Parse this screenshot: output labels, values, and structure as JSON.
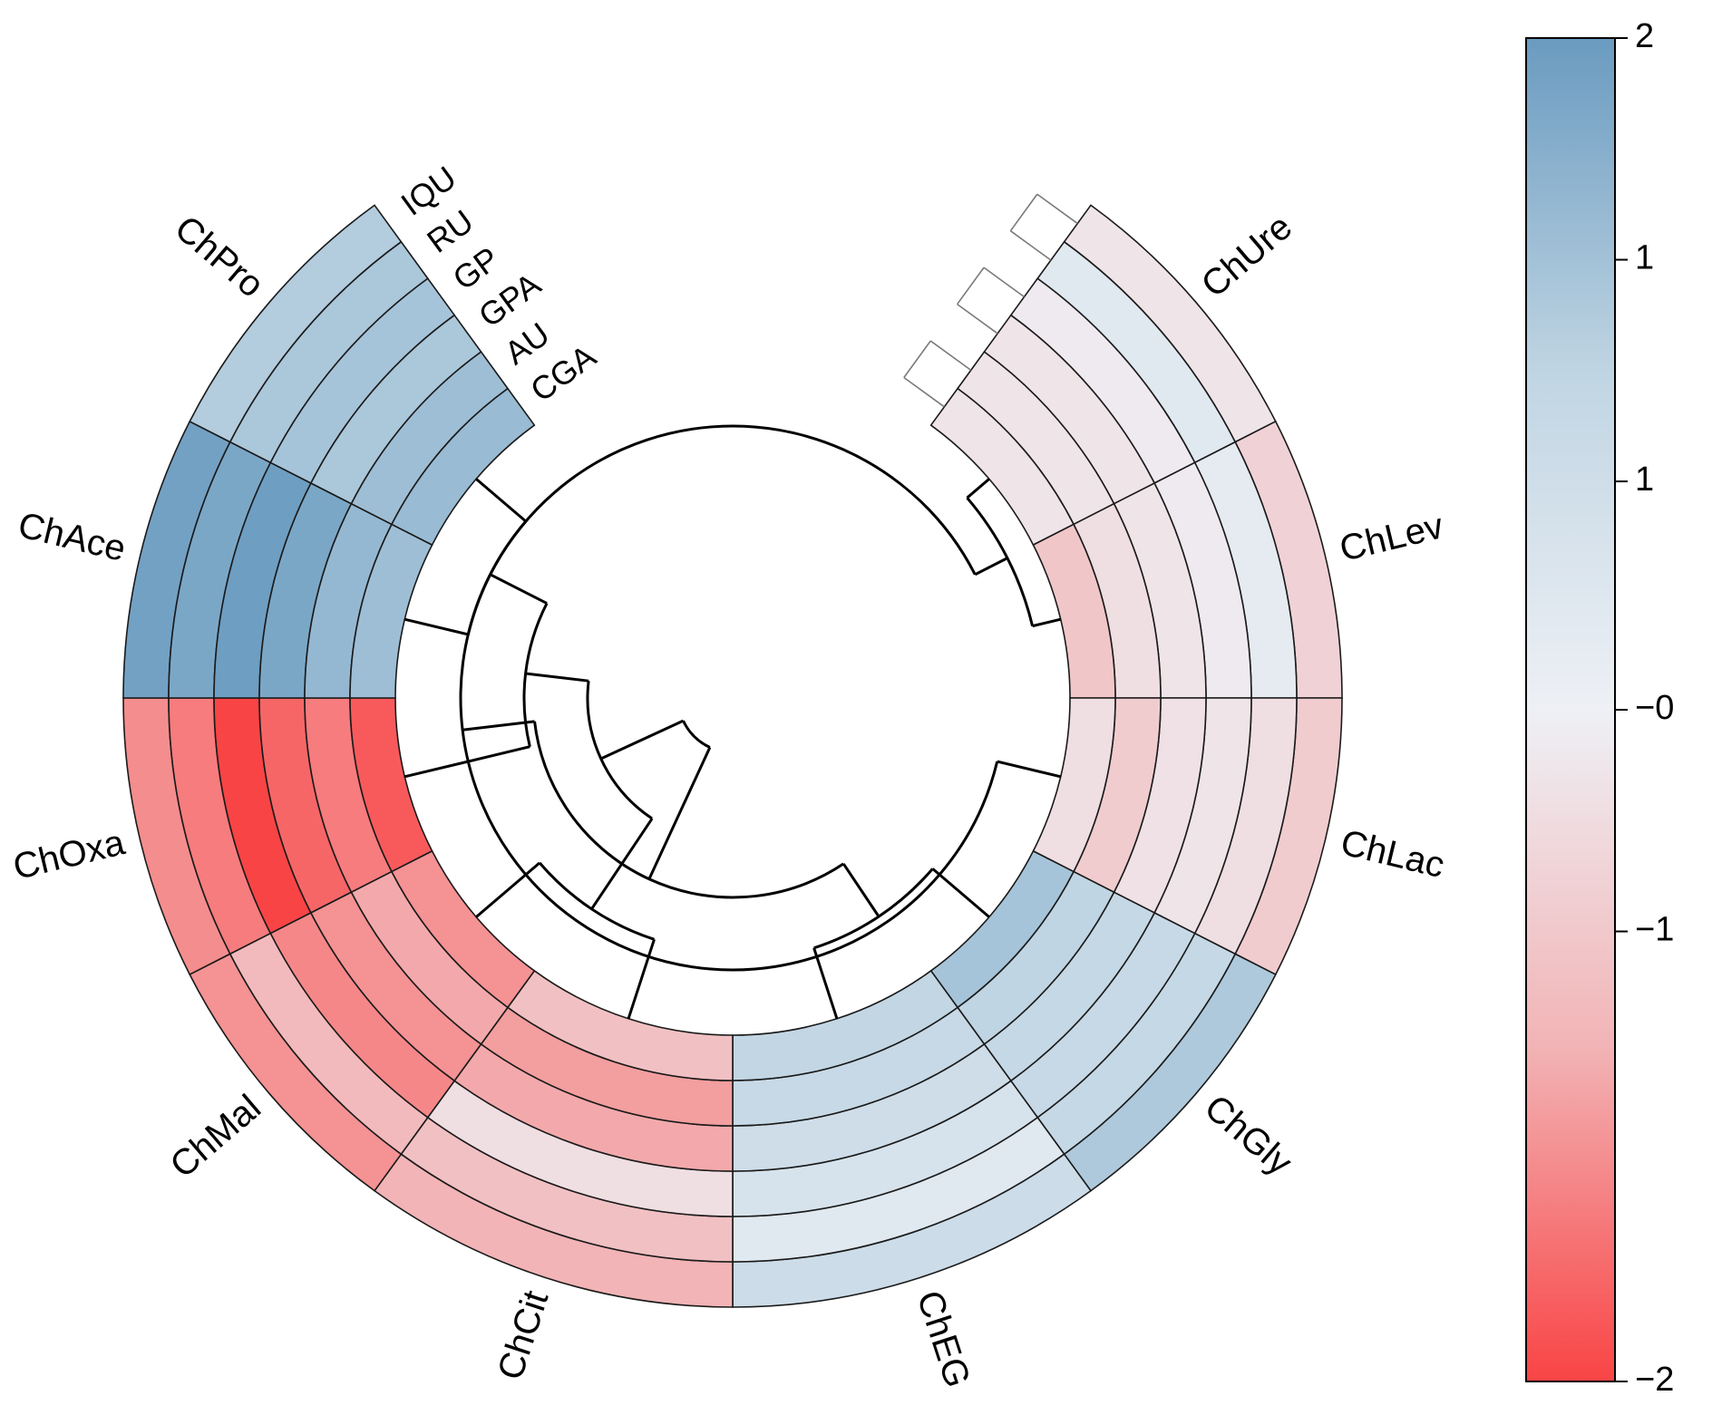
{
  "chart_data": {
    "type": "heatmap",
    "layout": "circular",
    "title": "",
    "samples": [
      "ChOxa",
      "ChAce",
      "ChPro",
      "ChUre",
      "ChLev",
      "ChLac",
      "ChGly",
      "ChEG",
      "ChCit",
      "ChMal"
    ],
    "rings": [
      "IQU",
      "RU",
      "GP",
      "GPA",
      "AU",
      "CGA"
    ],
    "values": {
      "ChPro": [
        1.15,
        1.25,
        1.3,
        1.25,
        1.4,
        1.45
      ],
      "ChAce": [
        1.9,
        1.8,
        1.95,
        1.8,
        1.5,
        1.4
      ],
      "ChOxa": [
        -1.35,
        -1.5,
        -2.0,
        -1.7,
        -1.5,
        -1.8
      ],
      "ChMal": [
        -1.3,
        -0.9,
        -1.4,
        -1.3,
        -1.1,
        -1.3
      ],
      "ChCit": [
        -1.0,
        -0.8,
        -0.3,
        -1.1,
        -1.2,
        -0.8
      ],
      "ChEG": [
        0.75,
        0.3,
        0.5,
        0.7,
        0.85,
        0.95
      ],
      "ChGly": [
        1.2,
        0.9,
        0.85,
        0.9,
        1.0,
        1.3
      ],
      "ChLac": [
        -0.6,
        -0.3,
        -0.2,
        -0.25,
        -0.6,
        -0.3
      ],
      "ChLev": [
        -0.5,
        0.2,
        -0.1,
        -0.2,
        -0.3,
        -0.7
      ],
      "ChUre": [
        -0.2,
        0.3,
        -0.1,
        -0.2,
        -0.2,
        -0.2
      ]
    },
    "colorbar": {
      "ticks": [
        "2",
        "1",
        "1",
        "−0",
        "−1",
        "−2"
      ],
      "range": [
        -2,
        2
      ],
      "colors": {
        "high": "#6a9bc0",
        "mid_high": "#c0d5e3",
        "mid": "#eef0f5",
        "mid_low": "#f2b4b6",
        "low": "#f94445"
      }
    },
    "dendrogram": "hierarchical clustering of samples, drawn in the centre"
  }
}
